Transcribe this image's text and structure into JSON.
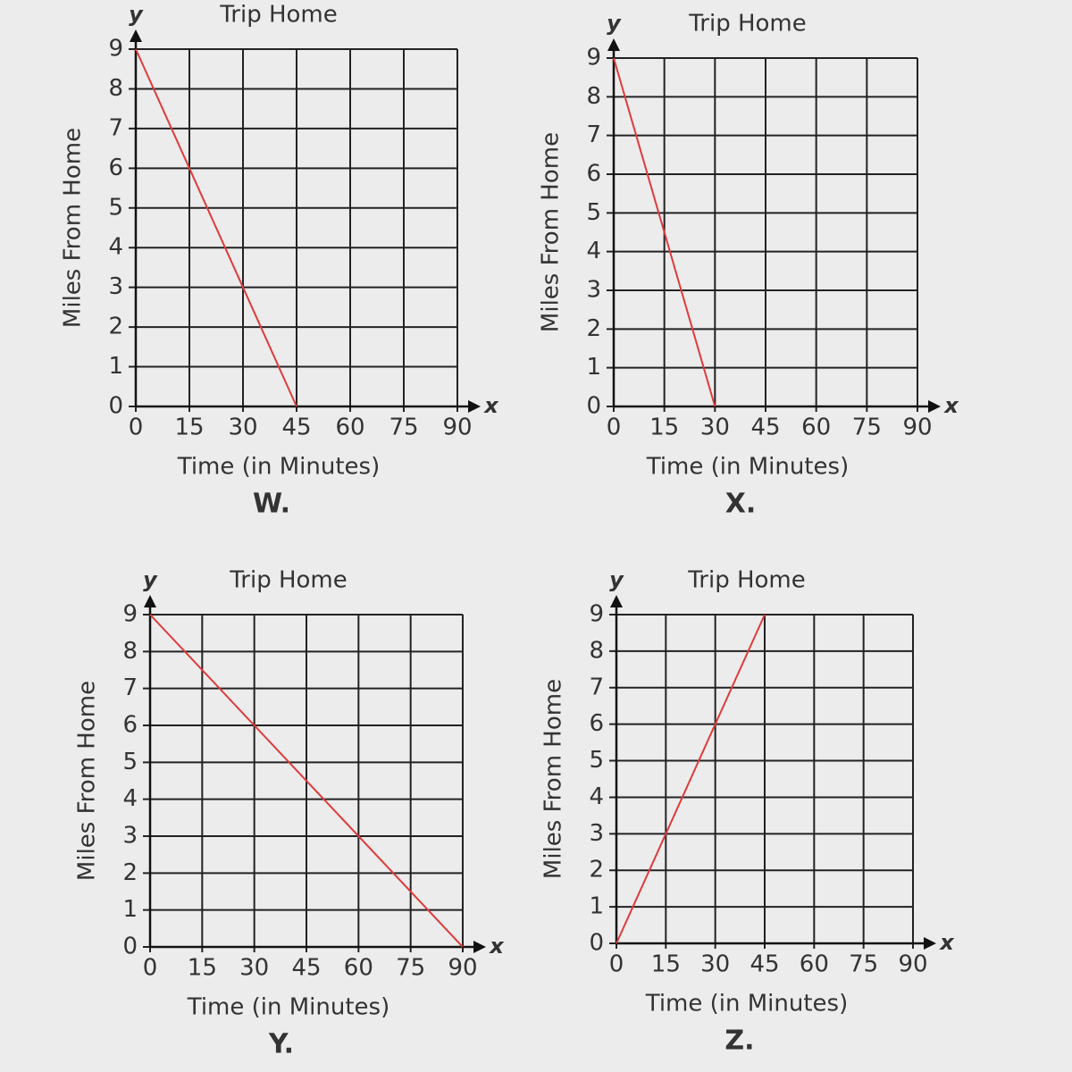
{
  "chart_data": [
    {
      "type": "line",
      "title": "Trip Home",
      "x_label": "Time (in Minutes)",
      "y_label": "Miles From Home",
      "caption": "W.",
      "x_symbol": "x",
      "y_symbol": "y",
      "x": [
        0,
        45
      ],
      "values": [
        9,
        0
      ],
      "color": "#e03a3a",
      "grid": true,
      "xlim": [
        0,
        90
      ],
      "xticks": [
        0,
        15,
        30,
        45,
        60,
        75,
        90
      ],
      "ylim": [
        0,
        9
      ],
      "yticks": [
        0,
        1,
        2,
        3,
        4,
        5,
        6,
        7,
        8,
        9
      ]
    },
    {
      "type": "line",
      "title": "Trip Home",
      "x_label": "Time (in Minutes)",
      "y_label": "Miles From Home",
      "caption": "X.",
      "x_symbol": "x",
      "y_symbol": "y",
      "x": [
        0,
        30
      ],
      "values": [
        9,
        0
      ],
      "color": "#e03a3a",
      "grid": true,
      "xlim": [
        0,
        90
      ],
      "xticks": [
        0,
        15,
        30,
        45,
        60,
        75,
        90
      ],
      "ylim": [
        0,
        9
      ],
      "yticks": [
        0,
        1,
        2,
        3,
        4,
        5,
        6,
        7,
        8,
        9
      ]
    },
    {
      "type": "line",
      "title": "Trip Home",
      "x_label": "Time (in Minutes)",
      "y_label": "Miles From Home",
      "caption": "Y.",
      "x_symbol": "x",
      "y_symbol": "y",
      "x": [
        0,
        90
      ],
      "values": [
        9,
        0
      ],
      "color": "#e03a3a",
      "grid": true,
      "xlim": [
        0,
        90
      ],
      "xticks": [
        0,
        15,
        30,
        45,
        60,
        75,
        90
      ],
      "ylim": [
        0,
        9
      ],
      "yticks": [
        0,
        1,
        2,
        3,
        4,
        5,
        6,
        7,
        8,
        9
      ]
    },
    {
      "type": "line",
      "title": "Trip Home",
      "x_label": "Time (in Minutes)",
      "y_label": "Miles From Home",
      "caption": "Z.",
      "x_symbol": "x",
      "y_symbol": "y",
      "x": [
        0,
        45
      ],
      "values": [
        0,
        9
      ],
      "color": "#e03a3a",
      "grid": true,
      "xlim": [
        0,
        90
      ],
      "xticks": [
        0,
        15,
        30,
        45,
        60,
        75,
        90
      ],
      "ylim": [
        0,
        9
      ],
      "yticks": [
        0,
        1,
        2,
        3,
        4,
        5,
        6,
        7,
        8,
        9
      ]
    }
  ]
}
